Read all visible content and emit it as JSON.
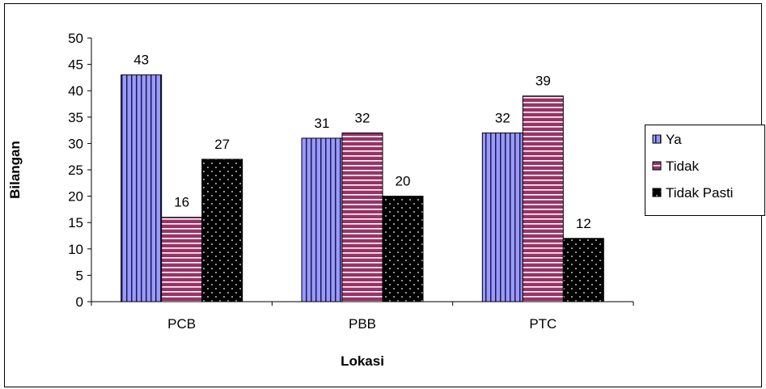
{
  "chart_data": {
    "type": "bar",
    "title": "",
    "xlabel": "Lokasi",
    "ylabel": "Bilangan",
    "categories": [
      "PCB",
      "PBB",
      "PTC"
    ],
    "series": [
      {
        "name": "Ya",
        "values": [
          43,
          31,
          32
        ],
        "color": "#9999ff",
        "pattern": "vertical-stripes"
      },
      {
        "name": "Tidak",
        "values": [
          16,
          32,
          39
        ],
        "color": "#993366",
        "pattern": "horizontal-stripes"
      },
      {
        "name": "Tidak Pasti",
        "values": [
          27,
          20,
          12
        ],
        "color": "#000000",
        "pattern": "dots"
      }
    ],
    "ylim": [
      0,
      50
    ],
    "yticks": [
      0,
      5,
      10,
      15,
      20,
      25,
      30,
      35,
      40,
      45,
      50
    ],
    "grid": false,
    "legend_position": "right",
    "data_labels": true
  }
}
